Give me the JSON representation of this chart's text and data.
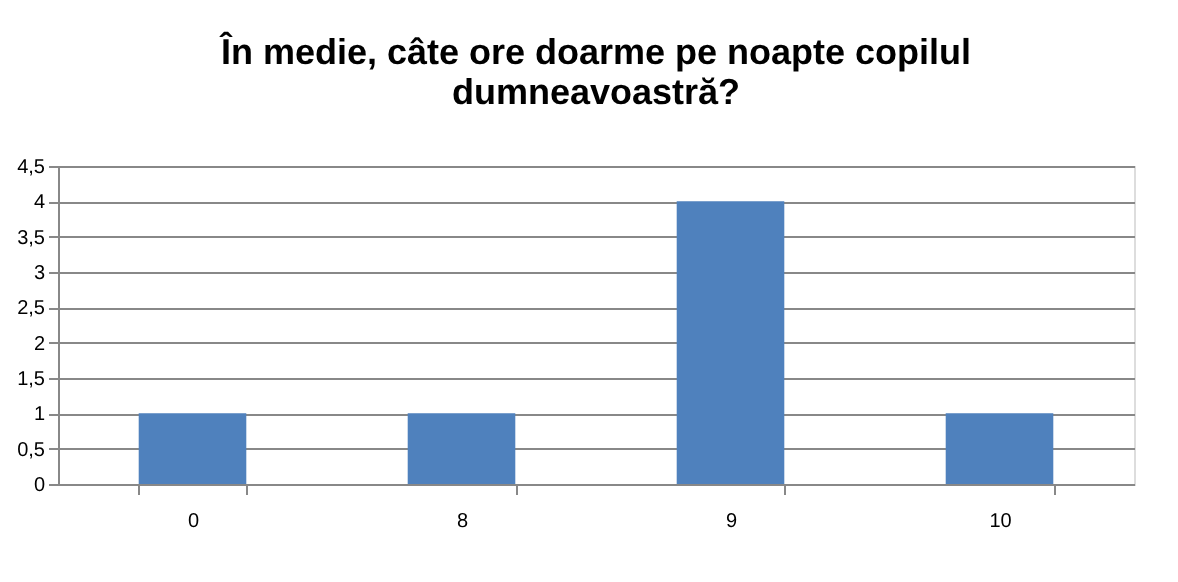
{
  "chart_data": {
    "type": "bar",
    "title": "În medie, câte ore doarme pe noapte copilul dumneavoastră?",
    "categories": [
      "0",
      "8",
      "9",
      "10"
    ],
    "values": [
      1,
      1,
      4,
      1
    ],
    "color": "#4f81bd",
    "ylim": [
      0,
      4.5
    ],
    "yticks": [
      0,
      {
        "value": 0.5,
        "label": "0,5"
      },
      1,
      {
        "value": 1.5,
        "label": "1,5"
      },
      2,
      {
        "value": 2.5,
        "label": "2,5"
      },
      3,
      {
        "value": 3.5,
        "label": "3,5"
      },
      4,
      {
        "value": 4.5,
        "label": "4,5"
      }
    ],
    "grid": "y"
  }
}
